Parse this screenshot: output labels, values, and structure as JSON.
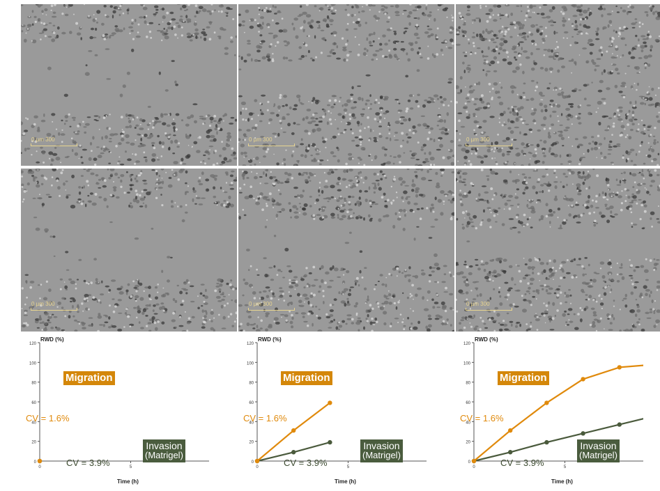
{
  "images": {
    "rows": [
      {
        "tiles": [
          {
            "scale_label": "0 µm 300"
          },
          {
            "scale_label": "0 µm 300"
          },
          {
            "scale_label": "0 µm 300"
          }
        ]
      },
      {
        "tiles": [
          {
            "scale_label": "0 µm 300"
          },
          {
            "scale_label": "0 µm 300"
          },
          {
            "scale_label": "0 µm 300"
          }
        ]
      }
    ],
    "wound_openness": [
      [
        1.0,
        0.42,
        0.05
      ],
      [
        1.0,
        0.6,
        0.35
      ]
    ]
  },
  "chart_data": [
    {
      "type": "line",
      "ylabel": "RWD (%)",
      "xlabel": "Time (h)",
      "xlim": [
        0,
        10
      ],
      "ylim": [
        0,
        120
      ],
      "xticks": [
        "0",
        "5",
        "10"
      ],
      "yticks": [
        "0",
        "20",
        "40",
        "60",
        "80",
        "100",
        "120"
      ],
      "annotations": {
        "migration": "Migration",
        "invasion": "Invasion",
        "invasion_sub": "(Matrigel)",
        "cv_migration": "CV = 1.6%",
        "cv_invasion": "CV = 3.9%"
      },
      "series": [
        {
          "name": "Migration",
          "color": "#e08a0c",
          "x": [
            0
          ],
          "y": [
            0
          ]
        },
        {
          "name": "Invasion",
          "color": "#4a5a3c",
          "x": [
            0
          ],
          "y": [
            0
          ]
        }
      ]
    },
    {
      "type": "line",
      "ylabel": "RWD (%)",
      "xlabel": "Time (h)",
      "xlim": [
        0,
        10
      ],
      "ylim": [
        0,
        120
      ],
      "xticks": [
        "0",
        "5",
        "10"
      ],
      "yticks": [
        "0",
        "20",
        "40",
        "60",
        "80",
        "100",
        "120"
      ],
      "annotations": {
        "migration": "Migration",
        "invasion": "Invasion",
        "invasion_sub": "(Matrigel)",
        "cv_migration": "CV = 1.6%",
        "cv_invasion": "CV = 3.9%"
      },
      "series": [
        {
          "name": "Migration",
          "color": "#e08a0c",
          "x": [
            0,
            2,
            4
          ],
          "y": [
            0,
            31,
            59
          ]
        },
        {
          "name": "Invasion",
          "color": "#4a5a3c",
          "x": [
            0,
            2,
            4
          ],
          "y": [
            0,
            9,
            19
          ]
        }
      ]
    },
    {
      "type": "line",
      "ylabel": "RWD (%)",
      "xlabel": "Time (h)",
      "xlim": [
        0,
        10
      ],
      "ylim": [
        0,
        120
      ],
      "xticks": [
        "0",
        "5",
        "10"
      ],
      "yticks": [
        "0",
        "20",
        "40",
        "60",
        "80",
        "100",
        "120"
      ],
      "annotations": {
        "migration": "Migration",
        "invasion": "Invasion",
        "invasion_sub": "(Matrigel)",
        "cv_migration": "CV = 1.6%",
        "cv_invasion": "CV = 3.9%"
      },
      "series": [
        {
          "name": "Migration",
          "color": "#e08a0c",
          "x": [
            0,
            2,
            4,
            6,
            8,
            10
          ],
          "y": [
            0,
            31,
            59,
            83,
            95,
            98
          ]
        },
        {
          "name": "Invasion",
          "color": "#4a5a3c",
          "x": [
            0,
            2,
            4,
            6,
            8,
            10
          ],
          "y": [
            0,
            9,
            19,
            28,
            37,
            46
          ]
        }
      ]
    }
  ]
}
